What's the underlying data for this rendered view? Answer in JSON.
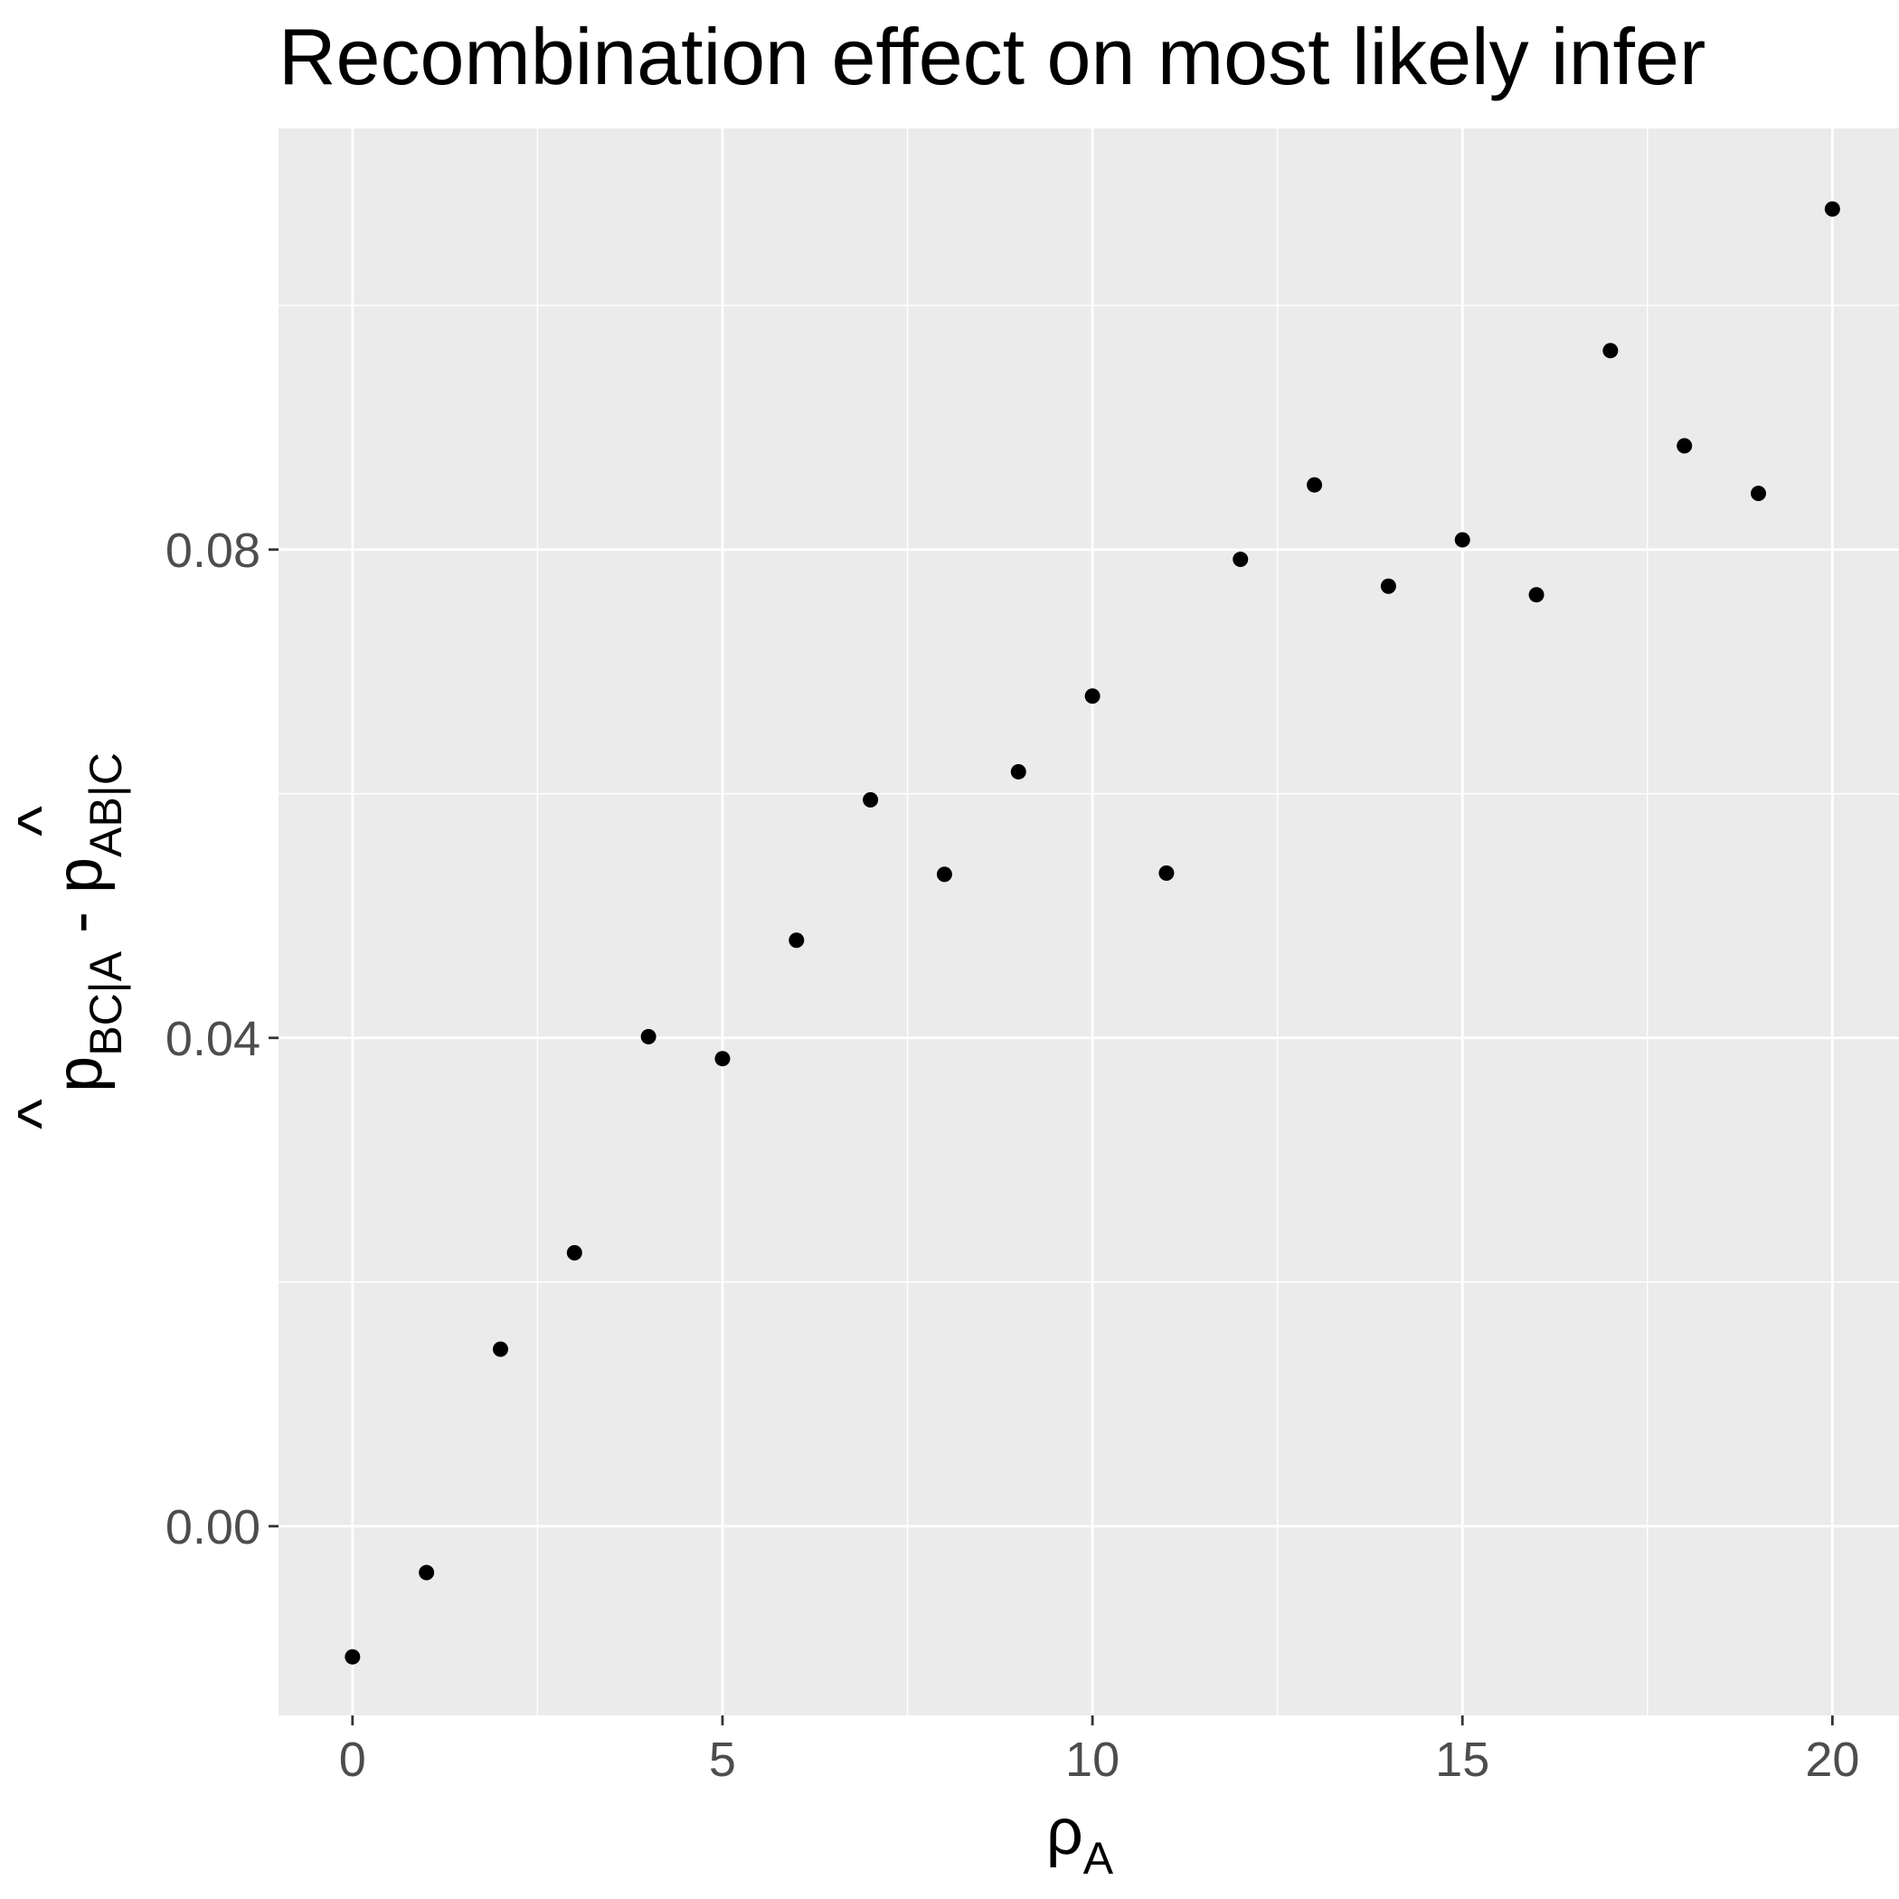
{
  "chart_data": {
    "type": "scatter",
    "title": "Recombination effect on most likely infer",
    "xlabel": {
      "base": "ρ",
      "subscript": "A"
    },
    "ylabel": {
      "hat": "^",
      "first_base": "p",
      "first_subscript": "BC|A",
      "separator": " - ",
      "second_base": "p",
      "second_subscript": "AB|C"
    },
    "xlim": [
      -1,
      20.9
    ],
    "ylim": [
      -0.0155,
      0.1145
    ],
    "x_ticks": [
      0,
      5,
      10,
      15,
      20
    ],
    "x_tick_labels": [
      "0",
      "5",
      "10",
      "15",
      "20"
    ],
    "x_minor_ticks": [
      2.5,
      7.5,
      12.5,
      17.5
    ],
    "y_ticks": [
      0.0,
      0.04,
      0.08
    ],
    "y_tick_labels": [
      "0.00",
      "0.04",
      "0.08"
    ],
    "y_minor_ticks": [
      -0.02,
      0.02,
      0.06,
      0.1
    ],
    "grid": true,
    "legend": "none",
    "colors": {
      "panel_background": "#ebebeb",
      "grid_line": "#ffffff",
      "point": "#000000",
      "tick_label": "#4d4d4d",
      "tick_mark": "#333333"
    },
    "points": [
      {
        "x": 0,
        "y": -0.0107
      },
      {
        "x": 1,
        "y": -0.0038
      },
      {
        "x": 2,
        "y": 0.0145
      },
      {
        "x": 3,
        "y": 0.0224
      },
      {
        "x": 4,
        "y": 0.0401
      },
      {
        "x": 5,
        "y": 0.0383
      },
      {
        "x": 6,
        "y": 0.048
      },
      {
        "x": 7,
        "y": 0.0595
      },
      {
        "x": 8,
        "y": 0.0534
      },
      {
        "x": 9,
        "y": 0.0618
      },
      {
        "x": 10,
        "y": 0.068
      },
      {
        "x": 11,
        "y": 0.0535
      },
      {
        "x": 12,
        "y": 0.0792
      },
      {
        "x": 13,
        "y": 0.0853
      },
      {
        "x": 14,
        "y": 0.077
      },
      {
        "x": 15,
        "y": 0.0808
      },
      {
        "x": 16,
        "y": 0.0763
      },
      {
        "x": 17,
        "y": 0.0963
      },
      {
        "x": 18,
        "y": 0.0885
      },
      {
        "x": 19,
        "y": 0.0846
      },
      {
        "x": 20,
        "y": 0.1079
      }
    ]
  }
}
